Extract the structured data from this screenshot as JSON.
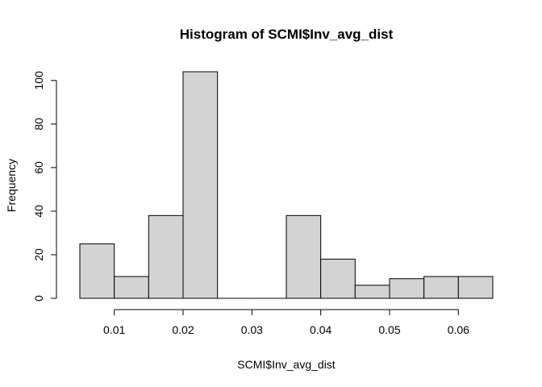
{
  "chart_data": {
    "type": "bar",
    "title": "Histogram of SCMI$Inv_avg_dist",
    "xlabel": "SCMI$Inv_avg_dist",
    "ylabel": "Frequency",
    "bin_edges": [
      0.005,
      0.01,
      0.015,
      0.02,
      0.025,
      0.03,
      0.035,
      0.04,
      0.045,
      0.05,
      0.055,
      0.06,
      0.065
    ],
    "values": [
      25,
      10,
      38,
      104,
      0,
      0,
      38,
      18,
      6,
      9,
      10,
      10
    ],
    "xticks": [
      0.01,
      0.02,
      0.03,
      0.04,
      0.05,
      0.06
    ],
    "xtick_labels": [
      "0.01",
      "0.02",
      "0.03",
      "0.04",
      "0.05",
      "0.06"
    ],
    "yticks": [
      0,
      20,
      40,
      60,
      80,
      100
    ],
    "ytick_labels": [
      "0",
      "20",
      "40",
      "60",
      "80",
      "100"
    ],
    "xlim": [
      0.005,
      0.065
    ],
    "ylim": [
      0,
      104
    ],
    "bar_fill": "#d3d3d3",
    "bar_stroke": "#000000",
    "grid": false,
    "legend": "none"
  }
}
